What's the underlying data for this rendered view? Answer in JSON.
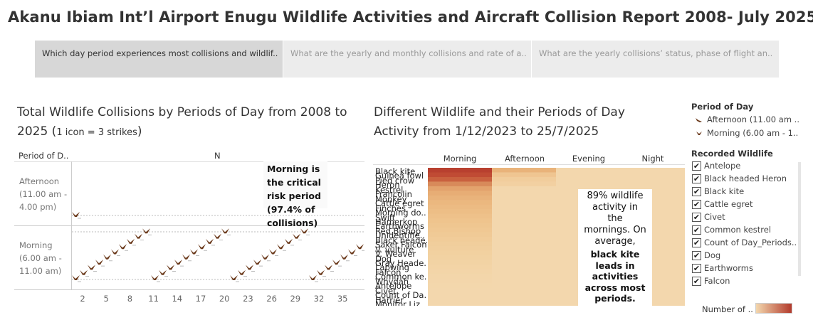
{
  "title": "Akanu Ibiam Int’l Airport Enugu Wildlife Activities and Aircraft Collision Report 2008- July 2025",
  "tabs": [
    {
      "label": "Which day period experiences most collisions and wildlif.."
    },
    {
      "label": "What are the yearly and monthly collisions  and rate of a.."
    },
    {
      "label": "What are the yearly collisions’ status, phase of flight an.."
    }
  ],
  "left_chart": {
    "title": "Total Wildlife Collisions by Periods of Day from 2008 to 2025",
    "title_note_open": "(",
    "title_note": "1 icon = 3 strikes",
    "title_note_close": ")",
    "row_header": "Period of D..",
    "col_header": "N",
    "rows": [
      {
        "label_1": "Afternoon",
        "label_2": "(11.00 am -",
        "label_3": "4.00 pm)"
      },
      {
        "label_1": "Morning",
        "label_2": "(6.00 am -",
        "label_3": "11.00 am)"
      }
    ],
    "x_ticks": [
      "2",
      "5",
      "8",
      "11",
      "14",
      "17",
      "20",
      "23",
      "26",
      "29",
      "32",
      "35"
    ],
    "annotation": [
      "Morning is",
      "the critical",
      "risk period",
      "(97.4% of",
      "collisions)"
    ]
  },
  "chart_data": [
    {
      "type": "scatter",
      "title": "Total Wildlife Collisions by Periods of Day from 2008 to 2025 (1 icon = 3 strikes)",
      "xlabel": "N",
      "ylabel": "Period of D..",
      "x_ticks": [
        2,
        5,
        8,
        11,
        14,
        17,
        20,
        23,
        26,
        29,
        32,
        35
      ],
      "series": [
        {
          "name": "Afternoon (11.00 am - 4.00 pm)",
          "icons": 1
        },
        {
          "name": "Morning (6.00 am - 11.00 am)",
          "icons": 37
        }
      ]
    },
    {
      "type": "heatmap",
      "title": "Different Wildlife  and their Periods of Day Activity from 1/12/2023 to 25/7/2025",
      "columns": [
        "Morning",
        "Afternoon",
        "Evening",
        "Night"
      ]
    }
  ],
  "right_chart": {
    "title_line1": "Different Wildlife  and their Periods of Day",
    "title_line2": "Activity from 1/12/2023 to 25/7/2025",
    "columns": [
      "Morning",
      "Afternoon",
      "Evening",
      "Night"
    ],
    "wildlife": [
      "Black kite",
      "Guinea fowl",
      "Pied crow",
      "Heron",
      "Kestrel",
      "Francolin",
      "Monkey",
      "Cattle egret",
      "Finches",
      "Morning do..",
      "Swift",
      "Hamerkop",
      "Earthworms",
      "Red Bishop",
      "Unidentifie..",
      "Black heade..",
      "Saker Falcon",
      "V. vulture",
      "V. Weaver",
      "Dog",
      "Gray Heade..",
      "Lapwing",
      "Falcon",
      "Common ke..",
      "Whydah",
      "Antelope",
      "Civet",
      "Count of Da..",
      "Harrier",
      "Monitor Liz.."
    ],
    "annotation_normal": [
      "89% wildlife",
      "activity in",
      "the",
      "mornings. On",
      "average,"
    ],
    "annotation_bold": [
      "black kite",
      "leads in",
      "activities",
      "across most",
      "periods."
    ]
  },
  "legend": {
    "period_title": "Period of Day",
    "periods": [
      "Afternoon (11.00 am ..",
      "Morning (6.00 am - 1.."
    ],
    "wildlife_title": "Recorded Wildlife",
    "wildlife": [
      "Antelope",
      "Black headed Heron",
      "Black kite",
      "Cattle egret",
      "Civet",
      "Common kestrel",
      "Count of Day_Periods..",
      "Dog",
      "Earthworms",
      "Falcon"
    ],
    "color_title": "Number of ..",
    "colors": {
      "low": "#f3d7ad",
      "high": "#b23a2c"
    }
  }
}
